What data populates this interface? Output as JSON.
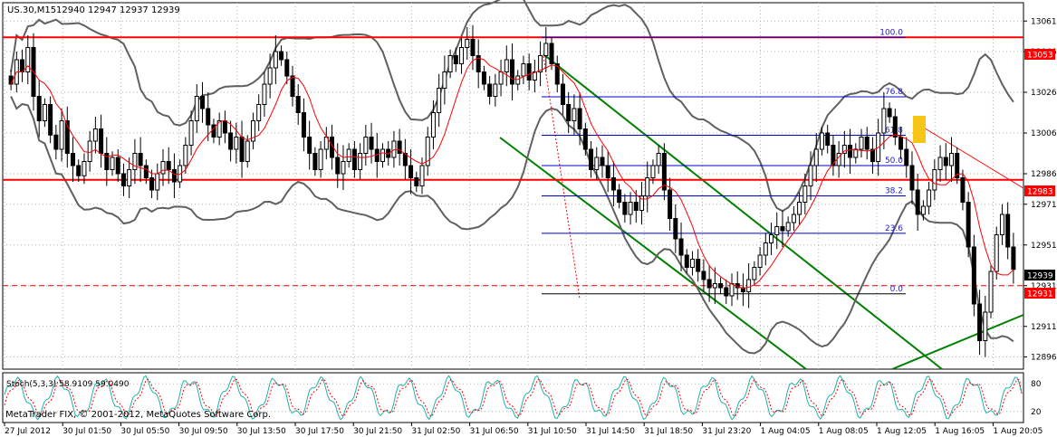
{
  "header": {
    "symbol": "US.30,M15",
    "ohlc": "12940 12947 12937 12939"
  },
  "footer": {
    "copyright": "MetaTrader FIX, © 2001-2012, MetaQuotes Software Corp."
  },
  "colors": {
    "candle": "#000000",
    "bollinger": "#606060",
    "ma": "#ff0000",
    "resistance": "#ff0000",
    "fib": "#0000cc",
    "channel": "#008000",
    "highlight": "#f5c518",
    "stoch_main": "#20b2aa",
    "stoch_signal": "#ff0000"
  },
  "chart_data": [
    {
      "type": "candlestick",
      "title": "",
      "y_ticks": [
        13061,
        13046,
        13026,
        13006,
        12986,
        12971,
        12951,
        12931,
        12911,
        12896
      ],
      "ylim": [
        12890,
        13070
      ],
      "x_tick_labels": [
        "27 Jul 2012",
        "30 Jul 01:50",
        "30 Jul 05:50",
        "30 Jul 09:50",
        "30 Jul 13:50",
        "30 Jul 17:50",
        "30 Jul 21:50",
        "31 Jul 02:50",
        "31 Jul 06:50",
        "31 Jul 10:50",
        "31 Jul 14:50",
        "31 Jul 18:50",
        "31 Jul 23:20",
        "1 Aug 04:05",
        "1 Aug 08:05",
        "1 Aug 12:05",
        "1 Aug 16:05",
        "1 Aug 20:05"
      ],
      "price_tags": [
        {
          "value": "13053",
          "style": "red"
        },
        {
          "value": "12983",
          "style": "red"
        },
        {
          "value": "12939",
          "style": "black"
        },
        {
          "value": "12931",
          "style": "red"
        }
      ],
      "horizontal_levels": [
        {
          "price": 13053,
          "style": "solid"
        },
        {
          "price": 12983,
          "style": "solid"
        },
        {
          "price": 12931,
          "style": "dashed"
        }
      ],
      "fibonacci": {
        "high": 13053,
        "low": 12927,
        "levels": [
          {
            "label": "100.0",
            "ratio": 1.0
          },
          {
            "label": "76.8",
            "ratio": 0.768
          },
          {
            "label": "61.8",
            "ratio": 0.618
          },
          {
            "label": "50.0",
            "ratio": 0.5
          },
          {
            "label": "38.2",
            "ratio": 0.382
          },
          {
            "label": "23.6",
            "ratio": 0.236
          },
          {
            "label": "0.0",
            "ratio": 0.0
          }
        ]
      },
      "closes": [
        13030,
        13042,
        13036,
        13048,
        13024,
        13012,
        13020,
        13005,
        12998,
        13012,
        12996,
        12990,
        12985,
        12992,
        13002,
        13008,
        12996,
        12988,
        12994,
        12986,
        12980,
        12988,
        12996,
        12990,
        12984,
        12978,
        12986,
        12992,
        12988,
        12982,
        12990,
        13000,
        13012,
        13024,
        13018,
        13010,
        13004,
        13012,
        13006,
        12998,
        13004,
        12992,
        13002,
        13012,
        13020,
        13030,
        13038,
        13046,
        13042,
        13034,
        13024,
        13016,
        13004,
        12996,
        12988,
        12998,
        13004,
        12994,
        12986,
        12992,
        12998,
        12988,
        12996,
        13004,
        12998,
        12992,
        12998,
        12994,
        13002,
        12996,
        12990,
        12984,
        12980,
        12990,
        13004,
        13016,
        13028,
        13036,
        13044,
        13040,
        13048,
        13052,
        13044,
        13036,
        13030,
        13024,
        13030,
        13036,
        13042,
        13030,
        13034,
        13040,
        13032,
        13036,
        13044,
        13050,
        13040,
        13030,
        13020,
        13012,
        13018,
        13008,
        12998,
        12988,
        12994,
        12990,
        12984,
        12978,
        12972,
        12966,
        12972,
        12968,
        12975,
        12984,
        12990,
        12996,
        12978,
        12964,
        12954,
        12946,
        12940,
        12944,
        12938,
        12934,
        12930,
        12932,
        12930,
        12926,
        12932,
        12930,
        12928,
        12934,
        12940,
        12946,
        12952,
        12956,
        12960,
        12958,
        12962,
        12966,
        12972,
        12980,
        12990,
        12998,
        13006,
        13000,
        12990,
        12996,
        13000,
        12994,
        12998,
        13004,
        12998,
        12992,
        13006,
        13018,
        13014,
        13004,
        12998,
        12990,
        12978,
        12966,
        12970,
        12978,
        12988,
        12994,
        12990,
        12996,
        12984,
        12972,
        12950,
        12922,
        12904,
        12918,
        12938,
        12956,
        12966,
        12950,
        12939
      ],
      "stochastic": {
        "label": "Stoch(5,3,3) 58.9109 59.0490",
        "levels": [
          "80",
          "20"
        ],
        "main": 58.9109,
        "signal": 59.049
      }
    }
  ]
}
